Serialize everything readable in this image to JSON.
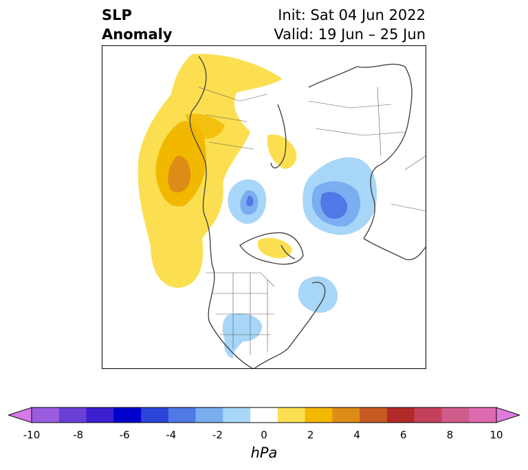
{
  "title": {
    "left_line1": "SLP",
    "left_line2": "Anomaly",
    "init": "Init: Sat 04 Jun 2022",
    "valid": "Valid: 19 Jun – 25 Jun"
  },
  "colorbar": {
    "unit_label": "hPa",
    "ticks": [
      "-10",
      "-8",
      "-6",
      "-4",
      "-2",
      "0",
      "2",
      "4",
      "6",
      "8",
      "10"
    ],
    "colors": [
      "#d47ae8",
      "#9b5ce0",
      "#6a3fd6",
      "#3b1fd0",
      "#0000cd",
      "#2a45d8",
      "#5078e6",
      "#7aaef0",
      "#a8d6f8",
      "#ffffff",
      "#fbdf50",
      "#f2b800",
      "#de8c18",
      "#c65a20",
      "#b22a2a",
      "#c4405c",
      "#d05c8c",
      "#dd6aae",
      "#e07bdb"
    ]
  },
  "map": {
    "projection": "north-polar-stereographic",
    "features": [
      {
        "name": "positive-anomaly-east-pacific-alaska",
        "sign": "positive"
      },
      {
        "name": "positive-anomaly-scandinavia",
        "sign": "positive"
      },
      {
        "name": "positive-anomaly-hudson-bay",
        "sign": "positive"
      },
      {
        "name": "negative-anomaly-greenland",
        "sign": "negative"
      },
      {
        "name": "negative-anomaly-siberia",
        "sign": "negative"
      },
      {
        "name": "negative-anomaly-north-atlantic",
        "sign": "negative"
      },
      {
        "name": "negative-anomaly-central-us",
        "sign": "negative"
      }
    ]
  }
}
